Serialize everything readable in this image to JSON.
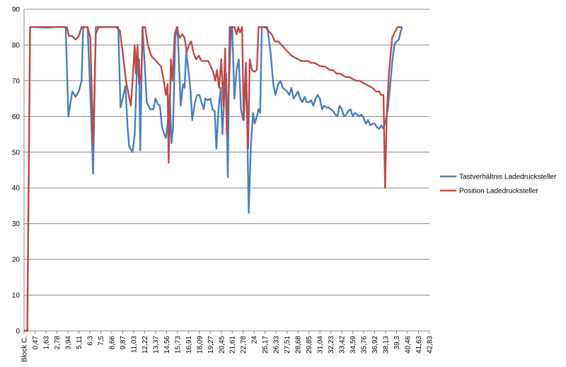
{
  "chart_data": {
    "type": "line",
    "title": "",
    "xlabel": "",
    "ylabel": "",
    "ylim": [
      0,
      90
    ],
    "yticks": [
      0,
      10,
      20,
      30,
      40,
      50,
      60,
      70,
      80,
      90
    ],
    "grid": "horizontal",
    "legend_position": "right",
    "x_tick_labels": [
      "Block C.",
      "0,47",
      "1,63",
      "2,78",
      "3,94",
      "5,11",
      "6,3",
      "7,5",
      "8,66",
      "9,87",
      "11,03",
      "12,22",
      "13,37",
      "14,56",
      "15,73",
      "16,91",
      "18,09",
      "19,27",
      "20,45",
      "21,61",
      "22,78",
      "24",
      "25,17",
      "26,33",
      "27,51",
      "28,68",
      "29,85",
      "31,04",
      "32,23",
      "33,42",
      "34,59",
      "35,76",
      "36,92",
      "38,13",
      "39,3",
      "40,46",
      "41,63",
      "42,83"
    ],
    "series": [
      {
        "name": "Tastverhältnis Ladedrucksteller",
        "color": "#4a7ebb",
        "points": [
          [
            0,
            0
          ],
          [
            0.3,
            0
          ],
          [
            0.55,
            85
          ],
          [
            1,
            85
          ],
          [
            2,
            84.8
          ],
          [
            3,
            85
          ],
          [
            3.8,
            85
          ],
          [
            4.05,
            60
          ],
          [
            4.4,
            67
          ],
          [
            4.7,
            65.5
          ],
          [
            5,
            67
          ],
          [
            5.25,
            70
          ],
          [
            5.4,
            85
          ],
          [
            5.8,
            85
          ],
          [
            6.05,
            66
          ],
          [
            6.3,
            44
          ],
          [
            6.55,
            85
          ],
          [
            7.2,
            85
          ],
          [
            8,
            85
          ],
          [
            8.6,
            85
          ],
          [
            8.8,
            62.5
          ],
          [
            9,
            65
          ],
          [
            9.25,
            68.5
          ],
          [
            9.45,
            57
          ],
          [
            9.6,
            51.5
          ],
          [
            9.9,
            50
          ],
          [
            10.1,
            55
          ],
          [
            10.3,
            73
          ],
          [
            10.5,
            76
          ],
          [
            10.6,
            50.5
          ],
          [
            10.8,
            85
          ],
          [
            11,
            75
          ],
          [
            11.2,
            64
          ],
          [
            11.5,
            62
          ],
          [
            11.8,
            62
          ],
          [
            12,
            65
          ],
          [
            12.2,
            63.5
          ],
          [
            12.4,
            63
          ],
          [
            12.6,
            57
          ],
          [
            12.8,
            55
          ],
          [
            12.95,
            54
          ],
          [
            13.1,
            58
          ],
          [
            13.3,
            66
          ],
          [
            13.45,
            52.5
          ],
          [
            13.6,
            57
          ],
          [
            13.8,
            82
          ],
          [
            14,
            85
          ],
          [
            14.15,
            74
          ],
          [
            14.3,
            63
          ],
          [
            14.5,
            69
          ],
          [
            14.65,
            68
          ],
          [
            14.8,
            78
          ],
          [
            15,
            73
          ],
          [
            15.2,
            67
          ],
          [
            15.35,
            59
          ],
          [
            15.6,
            64
          ],
          [
            15.8,
            66
          ],
          [
            16,
            66
          ],
          [
            16.2,
            64
          ],
          [
            16.4,
            62
          ],
          [
            16.55,
            65
          ],
          [
            16.75,
            64.5
          ],
          [
            17,
            65
          ],
          [
            17.2,
            62
          ],
          [
            17.4,
            61.5
          ],
          [
            17.55,
            51
          ],
          [
            17.75,
            62
          ],
          [
            17.95,
            68
          ],
          [
            18.1,
            55
          ],
          [
            18.3,
            67
          ],
          [
            18.45,
            72
          ],
          [
            18.6,
            43
          ],
          [
            18.75,
            85
          ],
          [
            19,
            85
          ],
          [
            19.2,
            65
          ],
          [
            19.4,
            73
          ],
          [
            19.6,
            76
          ],
          [
            19.8,
            62
          ],
          [
            20,
            59
          ],
          [
            20.2,
            71
          ],
          [
            20.35,
            60
          ],
          [
            20.5,
            33
          ],
          [
            20.7,
            52
          ],
          [
            20.9,
            61
          ],
          [
            21.05,
            58
          ],
          [
            21.25,
            60
          ],
          [
            21.4,
            62
          ],
          [
            21.55,
            61
          ],
          [
            21.7,
            85
          ],
          [
            22.2,
            85
          ],
          [
            22.5,
            78
          ],
          [
            22.75,
            69
          ],
          [
            22.95,
            66
          ],
          [
            23.2,
            69
          ],
          [
            23.4,
            70
          ],
          [
            23.6,
            68
          ],
          [
            23.8,
            67.5
          ],
          [
            24,
            67
          ],
          [
            24.2,
            66
          ],
          [
            24.4,
            68
          ],
          [
            24.6,
            65
          ],
          [
            24.8,
            66
          ],
          [
            25,
            67
          ],
          [
            25.2,
            65
          ],
          [
            25.4,
            64
          ],
          [
            25.6,
            65.5
          ],
          [
            25.8,
            64
          ],
          [
            26,
            64
          ],
          [
            26.2,
            64.5
          ],
          [
            26.4,
            63
          ],
          [
            26.6,
            65
          ],
          [
            26.8,
            66
          ],
          [
            27,
            65
          ],
          [
            27.2,
            62
          ],
          [
            27.4,
            63
          ],
          [
            27.6,
            62.5
          ],
          [
            27.8,
            62.5
          ],
          [
            28,
            62
          ],
          [
            28.2,
            61.5
          ],
          [
            28.4,
            60.5
          ],
          [
            28.6,
            60
          ],
          [
            28.8,
            63
          ],
          [
            29,
            62
          ],
          [
            29.2,
            60
          ],
          [
            29.4,
            60.5
          ],
          [
            29.6,
            61.5
          ],
          [
            29.8,
            62
          ],
          [
            30,
            60
          ],
          [
            30.2,
            61
          ],
          [
            30.4,
            60.5
          ],
          [
            30.6,
            60
          ],
          [
            30.8,
            60.5
          ],
          [
            31,
            59.5
          ],
          [
            31.2,
            58
          ],
          [
            31.4,
            59
          ],
          [
            31.6,
            57.5
          ],
          [
            31.8,
            58
          ],
          [
            32,
            58
          ],
          [
            32.2,
            57
          ],
          [
            32.4,
            56.5
          ],
          [
            32.6,
            57.5
          ],
          [
            32.8,
            56.5
          ],
          [
            33,
            59
          ],
          [
            33.2,
            62
          ],
          [
            33.4,
            68
          ],
          [
            33.6,
            75
          ],
          [
            33.8,
            80
          ],
          [
            34,
            81
          ],
          [
            34.2,
            81.5
          ],
          [
            34.4,
            84
          ],
          [
            34.5,
            85
          ]
        ]
      },
      {
        "name": "Position Ladedrucksteller",
        "color": "#be4b48",
        "points": [
          [
            0,
            0
          ],
          [
            0.3,
            0
          ],
          [
            0.55,
            85
          ],
          [
            1,
            85
          ],
          [
            2,
            85
          ],
          [
            3,
            85
          ],
          [
            3.9,
            85
          ],
          [
            4.1,
            82.5
          ],
          [
            4.4,
            82.5
          ],
          [
            4.7,
            81.5
          ],
          [
            5,
            82.5
          ],
          [
            5.25,
            85
          ],
          [
            5.8,
            85
          ],
          [
            6.05,
            82
          ],
          [
            6.3,
            52
          ],
          [
            6.55,
            83
          ],
          [
            6.8,
            85
          ],
          [
            7.5,
            85
          ],
          [
            8.4,
            85
          ],
          [
            8.75,
            84
          ],
          [
            9,
            78
          ],
          [
            9.3,
            70
          ],
          [
            9.55,
            66
          ],
          [
            9.75,
            63
          ],
          [
            9.9,
            70
          ],
          [
            10.1,
            80
          ],
          [
            10.2,
            72
          ],
          [
            10.35,
            80
          ],
          [
            10.5,
            69
          ],
          [
            10.7,
            72
          ],
          [
            10.85,
            85
          ],
          [
            11.05,
            85
          ],
          [
            11.3,
            80
          ],
          [
            11.6,
            77
          ],
          [
            11.9,
            76
          ],
          [
            12.2,
            75
          ],
          [
            12.5,
            74
          ],
          [
            12.75,
            70
          ],
          [
            12.95,
            66
          ],
          [
            13.1,
            69
          ],
          [
            13.2,
            47
          ],
          [
            13.4,
            76
          ],
          [
            13.55,
            70
          ],
          [
            13.75,
            83
          ],
          [
            13.95,
            85
          ],
          [
            14.2,
            82
          ],
          [
            14.45,
            83
          ],
          [
            14.65,
            82
          ],
          [
            14.85,
            78
          ],
          [
            15.05,
            80
          ],
          [
            15.25,
            81
          ],
          [
            15.45,
            78
          ],
          [
            15.7,
            76
          ],
          [
            15.95,
            77
          ],
          [
            16.2,
            75.5
          ],
          [
            16.5,
            75.5
          ],
          [
            16.8,
            75.5
          ],
          [
            17.05,
            74
          ],
          [
            17.3,
            72
          ],
          [
            17.45,
            70
          ],
          [
            17.6,
            73
          ],
          [
            17.8,
            68
          ],
          [
            18,
            76
          ],
          [
            18.2,
            63
          ],
          [
            18.35,
            79
          ],
          [
            18.5,
            55
          ],
          [
            18.7,
            69
          ],
          [
            18.9,
            85
          ],
          [
            19.2,
            85
          ],
          [
            19.4,
            83
          ],
          [
            19.55,
            85
          ],
          [
            19.7,
            83.5
          ],
          [
            19.9,
            85
          ],
          [
            20.05,
            59
          ],
          [
            20.25,
            75
          ],
          [
            20.45,
            51
          ],
          [
            20.6,
            76
          ],
          [
            20.8,
            73
          ],
          [
            21,
            72.5
          ],
          [
            21.25,
            73
          ],
          [
            21.4,
            85
          ],
          [
            21.7,
            85
          ],
          [
            22,
            85
          ],
          [
            22.3,
            84
          ],
          [
            22.6,
            83
          ],
          [
            22.9,
            81
          ],
          [
            23.2,
            81
          ],
          [
            23.5,
            80
          ],
          [
            23.8,
            79
          ],
          [
            24.1,
            78
          ],
          [
            24.4,
            77
          ],
          [
            24.7,
            76.5
          ],
          [
            25,
            76
          ],
          [
            25.3,
            75.5
          ],
          [
            25.6,
            75.5
          ],
          [
            25.9,
            75.5
          ],
          [
            26.2,
            75
          ],
          [
            26.5,
            75
          ],
          [
            26.8,
            74.5
          ],
          [
            27.1,
            74
          ],
          [
            27.4,
            74
          ],
          [
            27.7,
            73.5
          ],
          [
            27.9,
            73
          ],
          [
            28.2,
            73
          ],
          [
            28.5,
            72
          ],
          [
            28.8,
            72
          ],
          [
            29.1,
            71.5
          ],
          [
            29.4,
            71
          ],
          [
            29.7,
            71
          ],
          [
            30,
            70.5
          ],
          [
            30.3,
            70
          ],
          [
            30.6,
            70
          ],
          [
            30.9,
            69.5
          ],
          [
            31.2,
            69
          ],
          [
            31.5,
            68.5
          ],
          [
            31.8,
            68
          ],
          [
            32.1,
            67
          ],
          [
            32.4,
            67
          ],
          [
            32.6,
            66
          ],
          [
            32.8,
            66
          ],
          [
            32.95,
            40
          ],
          [
            33.1,
            60
          ],
          [
            33.3,
            72
          ],
          [
            33.6,
            82
          ],
          [
            33.9,
            84
          ],
          [
            34.1,
            85
          ],
          [
            34.5,
            85
          ]
        ]
      }
    ]
  }
}
